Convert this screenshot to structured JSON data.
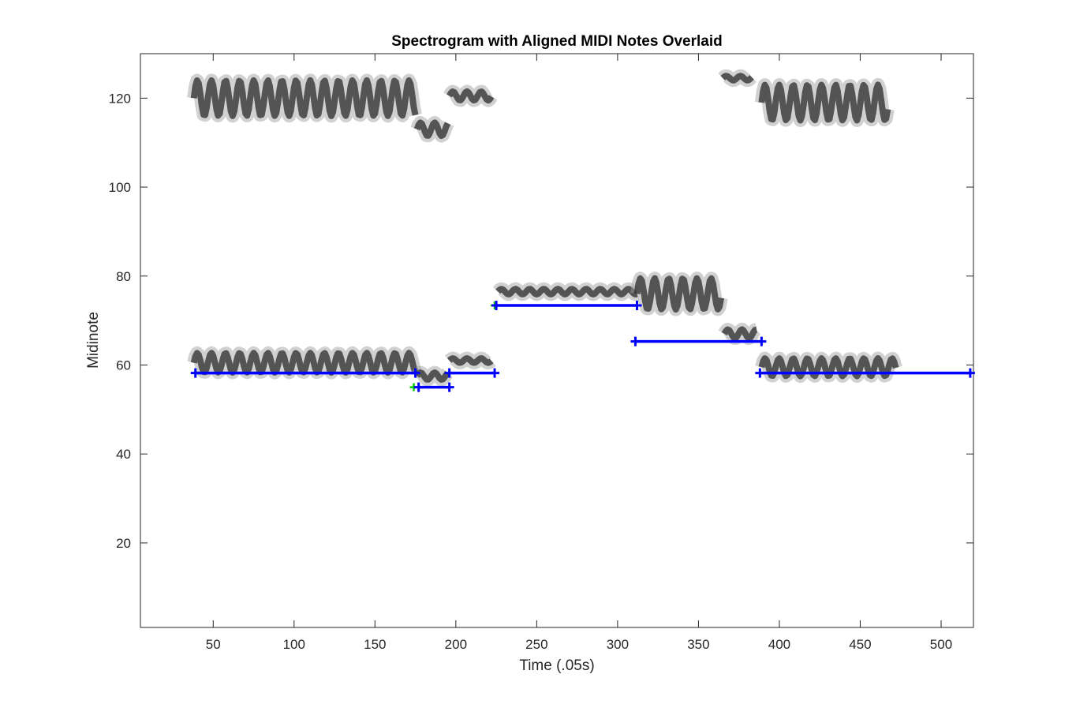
{
  "chart_data": {
    "type": "line",
    "title": "Spectrogram with Aligned MIDI Notes Overlaid",
    "xlabel": "Time (.05s)",
    "ylabel": "Midinote",
    "xlim": [
      5,
      520
    ],
    "ylim": [
      1,
      130
    ],
    "x_ticks": [
      50,
      100,
      150,
      200,
      250,
      300,
      350,
      400,
      450,
      500
    ],
    "y_ticks": [
      20,
      40,
      60,
      80,
      100,
      120
    ],
    "grid": false,
    "legend": "none",
    "colors": {
      "note": "#0000ff",
      "onset_marker": "#00cc00",
      "spectrogram": "#000000",
      "axes": "#262626"
    },
    "series": [
      {
        "type": "segments",
        "values": [
          {
            "start": 39,
            "end": 175,
            "pitch": 58.2
          },
          {
            "start": 177,
            "end": 196,
            "pitch": 55
          },
          {
            "start": 196,
            "end": 224,
            "pitch": 58.2
          },
          {
            "start": 225,
            "end": 312,
            "pitch": 73.4
          },
          {
            "start": 311,
            "end": 389,
            "pitch": 65.3
          },
          {
            "start": 388,
            "end": 518,
            "pitch": 58.2
          }
        ]
      },
      {
        "type": "onset_markers",
        "values": [
          {
            "x": 174,
            "y": 55
          },
          {
            "x": 196,
            "y": 58.2
          },
          {
            "x": 224,
            "y": 73.4
          }
        ]
      },
      {
        "type": "spectrogram_bands",
        "values": [
          {
            "start": 38,
            "end": 175,
            "center": 60.5,
            "vibrato": 2.2
          },
          {
            "start": 176,
            "end": 195,
            "center": 57.5,
            "vibrato": 0.8
          },
          {
            "start": 196,
            "end": 222,
            "center": 61,
            "vibrato": 0.5
          },
          {
            "start": 226,
            "end": 312,
            "center": 76.5,
            "vibrato": 0.6
          },
          {
            "start": 312,
            "end": 364,
            "center": 76,
            "vibrato": 3.5
          },
          {
            "start": 366,
            "end": 386,
            "center": 67,
            "vibrato": 1
          },
          {
            "start": 389,
            "end": 472,
            "center": 59.5,
            "vibrato": 2
          },
          {
            "start": 38,
            "end": 175,
            "center": 120,
            "vibrato": 4
          },
          {
            "start": 176,
            "end": 195,
            "center": 113,
            "vibrato": 1.5
          },
          {
            "start": 196,
            "end": 222,
            "center": 120.5,
            "vibrato": 1
          },
          {
            "start": 365,
            "end": 383,
            "center": 124.5,
            "vibrato": 0.5
          },
          {
            "start": 389,
            "end": 467,
            "center": 119,
            "vibrato": 4
          }
        ]
      }
    ]
  }
}
